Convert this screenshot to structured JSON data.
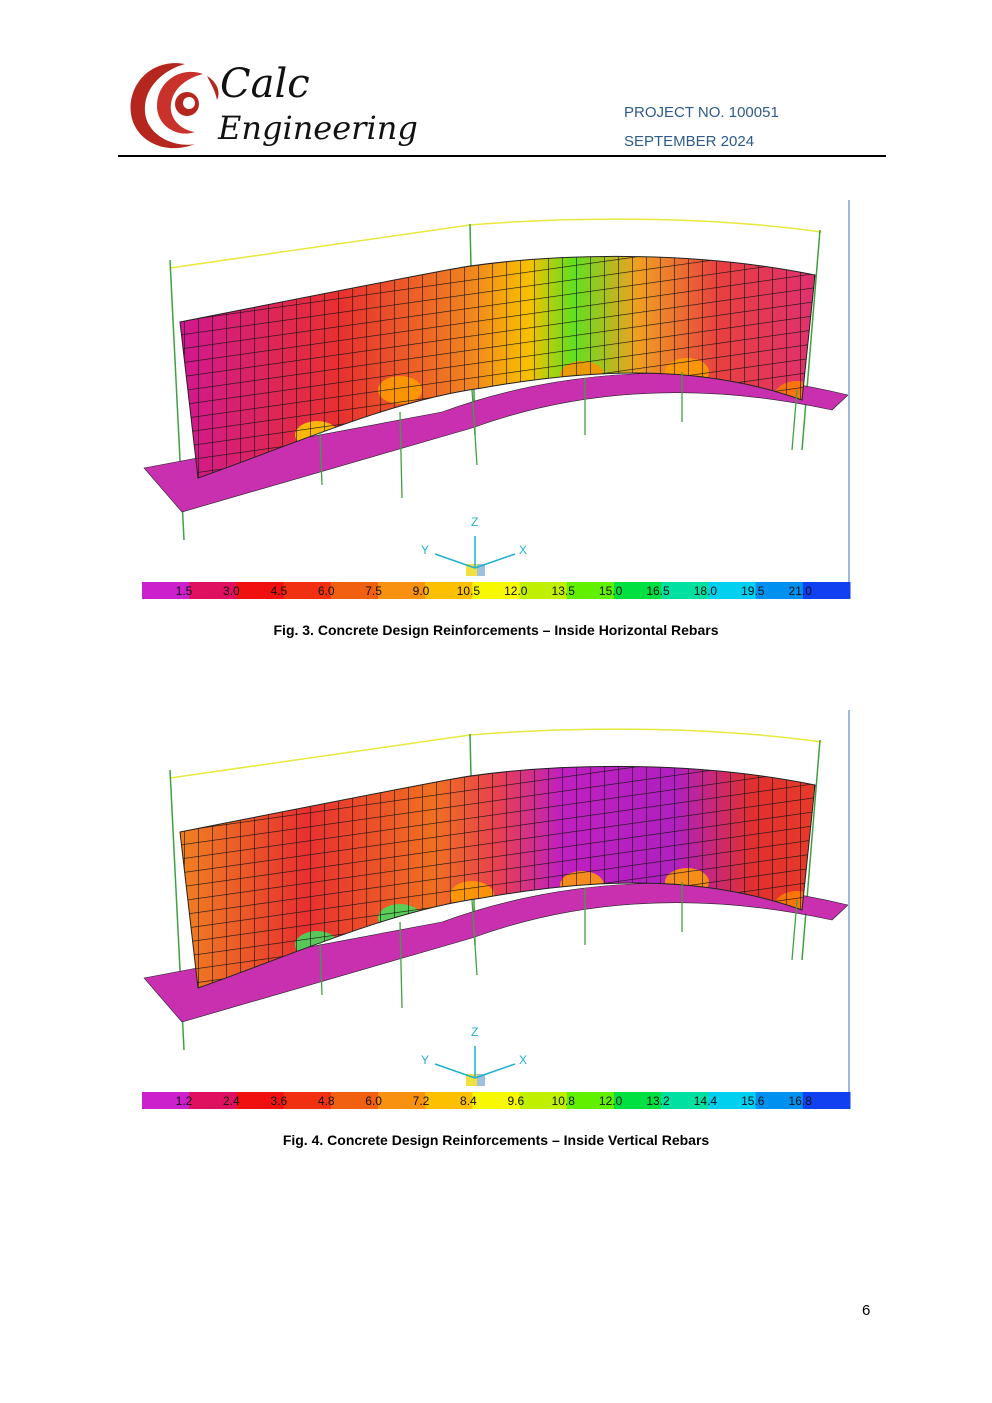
{
  "header": {
    "logo": {
      "line1": "Calc",
      "line2": "Engineering"
    },
    "project_no": "PROJECT NO. 100051",
    "date": "SEPTEMBER 2024"
  },
  "figures": [
    {
      "axes": {
        "z": "Z",
        "y": "Y",
        "x": "X"
      },
      "legend": [
        "1.5",
        "3.0",
        "4.5",
        "6.0",
        "7.5",
        "9.0",
        "10.5",
        "12.0",
        "13.5",
        "15.0",
        "16.5",
        "18.0",
        "19.5",
        "21.0"
      ],
      "caption": "Fig. 3. Concrete Design Reinforcements – Inside Horizontal Rebars"
    },
    {
      "axes": {
        "z": "Z",
        "y": "Y",
        "x": "X"
      },
      "legend": [
        "1.2",
        "2.4",
        "3.6",
        "4.8",
        "6.0",
        "7.2",
        "8.4",
        "9.6",
        "10.8",
        "12.0",
        "13.2",
        "14.4",
        "15.6",
        "16.8"
      ],
      "caption": "Fig. 4. Concrete Design Reinforcements – Inside Vertical Rebars"
    }
  ],
  "page_number": "6"
}
